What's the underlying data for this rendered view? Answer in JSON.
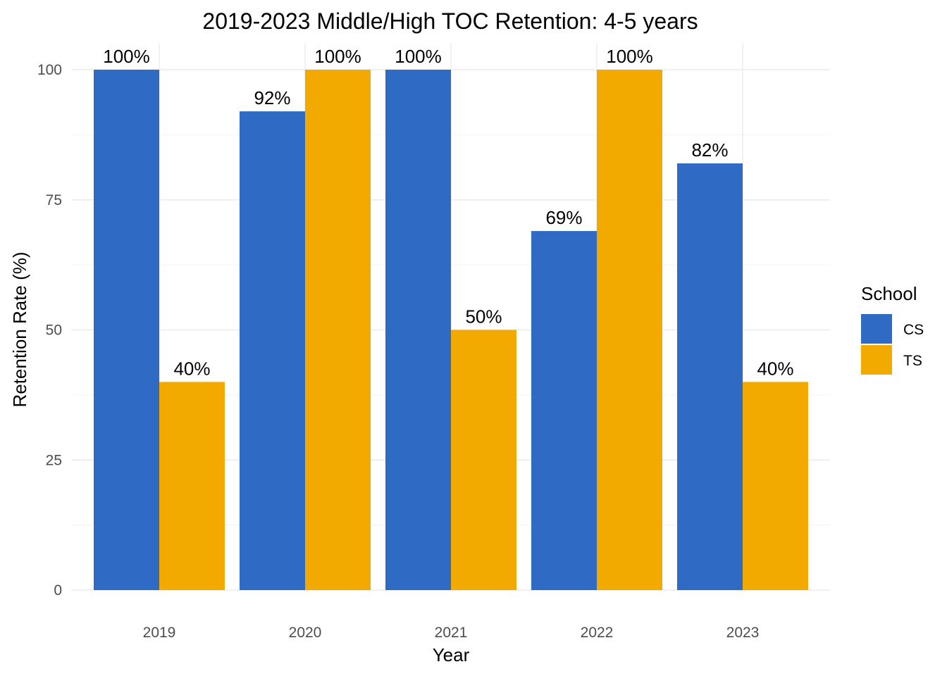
{
  "chart_data": {
    "type": "bar",
    "title": "2019-2023 Middle/High TOC Retention: 4-5 years",
    "xlabel": "Year",
    "ylabel": "Retention Rate (%)",
    "categories": [
      "2019",
      "2020",
      "2021",
      "2022",
      "2023"
    ],
    "ylim": [
      0,
      100
    ],
    "yticks": [
      0,
      25,
      50,
      75,
      100
    ],
    "grid": true,
    "legend": {
      "title": "School",
      "placement": "right"
    },
    "series": [
      {
        "name": "CS",
        "color": "#2F6AC5",
        "values": [
          100,
          92,
          100,
          69,
          82
        ],
        "labels": [
          "100%",
          "92%",
          "100%",
          "69%",
          "82%"
        ]
      },
      {
        "name": "TS",
        "color": "#F2A900",
        "values": [
          40,
          100,
          50,
          100,
          40
        ],
        "labels": [
          "40%",
          "100%",
          "50%",
          "100%",
          "40%"
        ]
      }
    ]
  }
}
